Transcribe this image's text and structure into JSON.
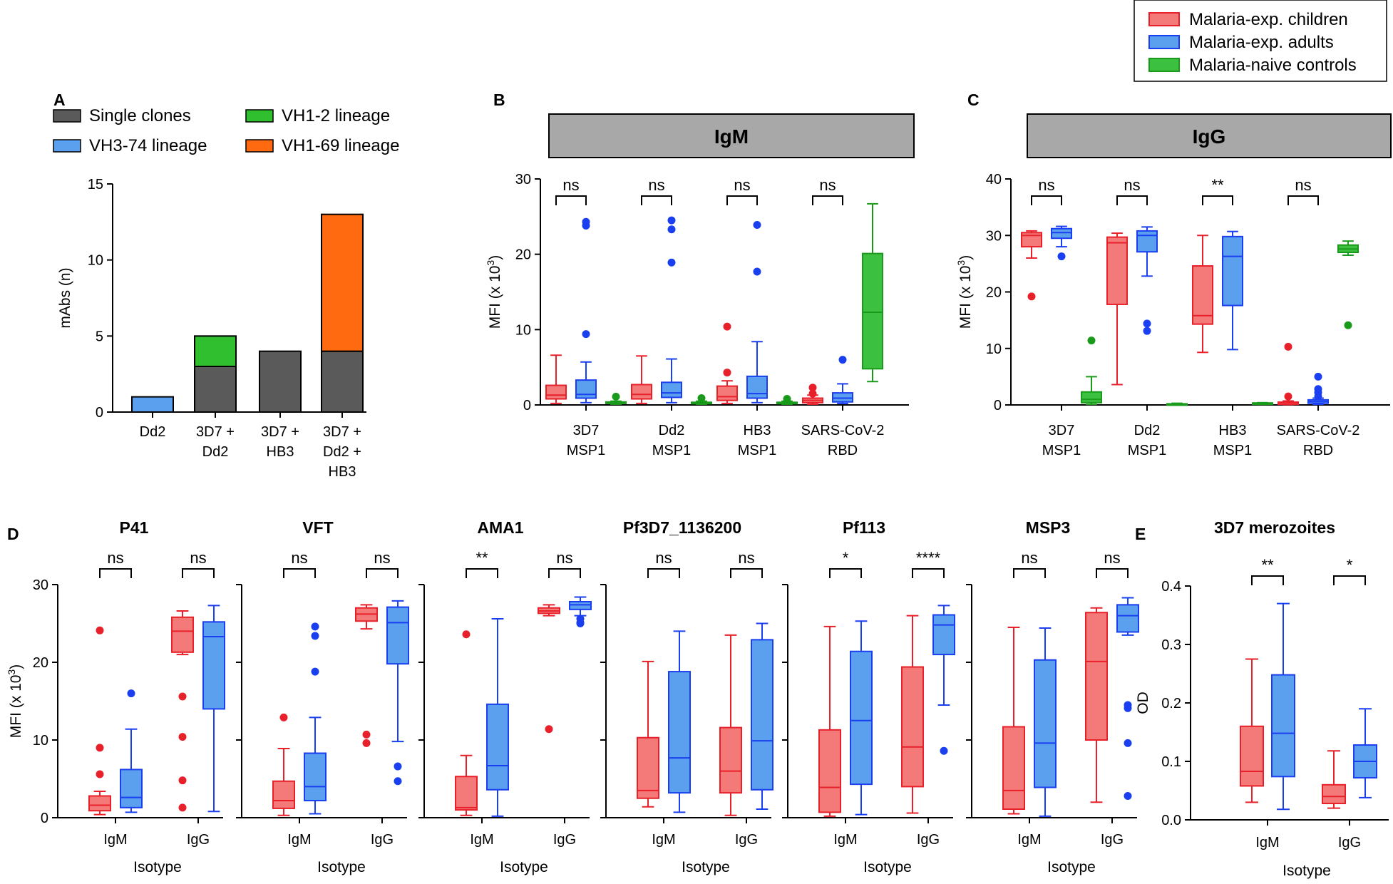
{
  "colors": {
    "children_fill": "#f47a7a",
    "children_line": "#e8202a",
    "adults_fill": "#5aa0ee",
    "adults_line": "#1a3ff0",
    "naive_fill": "#3cc040",
    "naive_line": "#1a9a1a",
    "single_clones": "#5a5a5a",
    "vh3_74": "#5aa0ee",
    "vh1_2": "#2fbf2f",
    "vh1_69": "#ff6a10",
    "header_bg": "#a8a8a8"
  },
  "legend_top": {
    "items": [
      {
        "label": "Malaria-exp. children",
        "key": "children"
      },
      {
        "label": "Malaria-exp. adults",
        "key": "adults"
      },
      {
        "label": "Malaria-naive controls",
        "key": "naive"
      }
    ]
  },
  "chart_data": [
    {
      "panel": "A",
      "type": "bar",
      "stacked": true,
      "categories": [
        "Dd2",
        "3D7 +\nDd2",
        "3D7 +\nHB3",
        "3D7 +\nDd2 +\nHB3"
      ],
      "series": [
        {
          "name": "Single clones",
          "values": [
            0,
            3,
            4,
            4
          ]
        },
        {
          "name": "VH3-74 lineage",
          "values": [
            1,
            0,
            0,
            0
          ]
        },
        {
          "name": "VH1-2 lineage",
          "values": [
            0,
            2,
            0,
            0
          ]
        },
        {
          "name": "VH1-69 lineage",
          "values": [
            0,
            0,
            0,
            9
          ]
        }
      ],
      "ylabel": "mAbs (n)",
      "ylim": [
        0,
        15
      ],
      "yticks": [
        0,
        5,
        10,
        15
      ]
    },
    {
      "panel": "B",
      "type": "box",
      "header": "IgM",
      "groups": [
        "3D7\nMSP1",
        "Dd2\nMSP1",
        "HB3\nMSP1",
        "SARS-CoV-2\nRBD"
      ],
      "significance": [
        "ns",
        "ns",
        "ns",
        "ns"
      ],
      "ylabel": "MFI (x 10³)",
      "ylim": [
        0,
        30
      ],
      "yticks": [
        0,
        10,
        20,
        30
      ],
      "boxes": [
        [
          {
            "series": "children",
            "min": 0.2,
            "q1": 0.8,
            "median": 1.3,
            "q3": 2.6,
            "max": 6.6,
            "outliers": []
          },
          {
            "series": "adults",
            "min": 0.3,
            "q1": 0.9,
            "median": 1.4,
            "q3": 3.3,
            "max": 5.7,
            "outliers": [
              9.4,
              23.8,
              24.3
            ]
          },
          {
            "series": "naive",
            "min": 0.1,
            "q1": 0.2,
            "median": 0.3,
            "q3": 0.4,
            "max": 0.5,
            "outliers": [
              1.1
            ]
          }
        ],
        [
          {
            "series": "children",
            "min": 0.2,
            "q1": 0.8,
            "median": 1.4,
            "q3": 2.7,
            "max": 6.5,
            "outliers": []
          },
          {
            "series": "adults",
            "min": 0.3,
            "q1": 1.0,
            "median": 1.6,
            "q3": 3.0,
            "max": 6.1,
            "outliers": [
              18.9,
              23.3,
              24.5
            ]
          },
          {
            "series": "naive",
            "min": 0.1,
            "q1": 0.2,
            "median": 0.25,
            "q3": 0.35,
            "max": 0.5,
            "outliers": [
              0.9
            ]
          }
        ],
        [
          {
            "series": "children",
            "min": 0.2,
            "q1": 0.6,
            "median": 1.1,
            "q3": 2.5,
            "max": 3.2,
            "outliers": [
              4.3,
              10.4
            ]
          },
          {
            "series": "adults",
            "min": 0.3,
            "q1": 0.9,
            "median": 1.5,
            "q3": 3.8,
            "max": 8.4,
            "outliers": [
              17.7,
              23.9
            ]
          },
          {
            "series": "naive",
            "min": 0.1,
            "q1": 0.2,
            "median": 0.25,
            "q3": 0.35,
            "max": 0.5,
            "outliers": [
              0.8
            ]
          }
        ],
        [
          {
            "series": "children",
            "min": 0.1,
            "q1": 0.3,
            "median": 0.6,
            "q3": 0.9,
            "max": 1.3,
            "outliers": [
              1.5,
              2.3
            ]
          },
          {
            "series": "adults",
            "min": 0.2,
            "q1": 0.4,
            "median": 0.9,
            "q3": 1.6,
            "max": 2.8,
            "outliers": [
              6.0
            ]
          },
          {
            "series": "naive",
            "min": 3.1,
            "q1": 4.8,
            "median": 12.3,
            "q3": 20.1,
            "max": 26.7,
            "outliers": []
          }
        ]
      ]
    },
    {
      "panel": "C",
      "type": "box",
      "header": "IgG",
      "groups": [
        "3D7\nMSP1",
        "Dd2\nMSP1",
        "HB3\nMSP1",
        "SARS-CoV-2\nRBD"
      ],
      "significance": [
        "ns",
        "ns",
        "**",
        "ns"
      ],
      "ylabel": "MFI (x 10³)",
      "ylim": [
        0,
        40
      ],
      "yticks": [
        0,
        10,
        20,
        30,
        40
      ],
      "boxes": [
        [
          {
            "series": "children",
            "min": 26.0,
            "q1": 28.0,
            "median": 30.0,
            "q3": 30.5,
            "max": 30.8,
            "outliers": [
              19.2
            ]
          },
          {
            "series": "adults",
            "min": 28.0,
            "q1": 29.5,
            "median": 30.5,
            "q3": 31.2,
            "max": 31.6,
            "outliers": [
              26.3
            ]
          },
          {
            "series": "naive",
            "min": 0.1,
            "q1": 0.4,
            "median": 1.0,
            "q3": 2.3,
            "max": 5.0,
            "outliers": [
              11.4
            ]
          }
        ],
        [
          {
            "series": "children",
            "min": 3.6,
            "q1": 17.8,
            "median": 28.7,
            "q3": 29.7,
            "max": 30.4,
            "outliers": []
          },
          {
            "series": "adults",
            "min": 22.8,
            "q1": 27.1,
            "median": 30.0,
            "q3": 30.8,
            "max": 31.5,
            "outliers": [
              13.1,
              14.4
            ]
          },
          {
            "series": "naive",
            "min": 0.05,
            "q1": 0.1,
            "median": 0.15,
            "q3": 0.2,
            "max": 0.3,
            "outliers": []
          }
        ],
        [
          {
            "series": "children",
            "min": 9.3,
            "q1": 14.3,
            "median": 15.8,
            "q3": 24.6,
            "max": 30.0,
            "outliers": []
          },
          {
            "series": "adults",
            "min": 9.8,
            "q1": 17.6,
            "median": 26.3,
            "q3": 29.8,
            "max": 30.7,
            "outliers": []
          },
          {
            "series": "naive",
            "min": 0.1,
            "q1": 0.2,
            "median": 0.25,
            "q3": 0.35,
            "max": 0.4,
            "outliers": []
          }
        ],
        [
          {
            "series": "children",
            "min": 0.05,
            "q1": 0.1,
            "median": 0.2,
            "q3": 0.5,
            "max": 0.7,
            "outliers": [
              1.5,
              10.3
            ]
          },
          {
            "series": "adults",
            "min": 0.1,
            "q1": 0.3,
            "median": 0.6,
            "q3": 0.9,
            "max": 1.2,
            "outliers": [
              1.5,
              2.2,
              2.8,
              5.0
            ]
          },
          {
            "series": "naive",
            "min": 26.5,
            "q1": 27.0,
            "median": 27.6,
            "q3": 28.3,
            "max": 29.0,
            "outliers": [
              14.1
            ]
          }
        ]
      ]
    },
    {
      "panel": "D",
      "type": "box",
      "shared_ylabel": "MFI (x 10³)",
      "ylim": [
        0,
        30
      ],
      "yticks": [
        0,
        10,
        20,
        30
      ],
      "xlabel": "Isotype",
      "isotypes": [
        "IgM",
        "IgG"
      ],
      "subpanels": [
        {
          "title": "P41",
          "significance": [
            "ns",
            "ns"
          ],
          "boxes": [
            [
              {
                "series": "children",
                "min": 0.4,
                "q1": 0.9,
                "median": 1.6,
                "q3": 2.8,
                "max": 3.4,
                "outliers": [
                  5.6,
                  9.0,
                  24.1
                ]
              },
              {
                "series": "adults",
                "min": 0.7,
                "q1": 1.3,
                "median": 2.6,
                "q3": 6.2,
                "max": 11.4,
                "outliers": [
                  16.0
                ]
              }
            ],
            [
              {
                "series": "children",
                "min": 21.0,
                "q1": 21.3,
                "median": 24.0,
                "q3": 25.8,
                "max": 26.6,
                "outliers": [
                  1.3,
                  4.8,
                  10.4,
                  15.6
                ]
              },
              {
                "series": "adults",
                "min": 0.8,
                "q1": 14.0,
                "median": 23.3,
                "q3": 25.2,
                "max": 27.3,
                "outliers": []
              }
            ]
          ]
        },
        {
          "title": "VFT",
          "significance": [
            "ns",
            "ns"
          ],
          "boxes": [
            [
              {
                "series": "children",
                "min": 0.3,
                "q1": 1.2,
                "median": 2.2,
                "q3": 4.7,
                "max": 8.9,
                "outliers": [
                  12.9
                ]
              },
              {
                "series": "adults",
                "min": 0.5,
                "q1": 2.2,
                "median": 4.0,
                "q3": 8.3,
                "max": 12.9,
                "outliers": [
                  18.8,
                  23.4,
                  24.6
                ]
              }
            ],
            [
              {
                "series": "children",
                "min": 24.3,
                "q1": 25.3,
                "median": 26.2,
                "q3": 27.0,
                "max": 27.4,
                "outliers": [
                  9.6,
                  10.7
                ]
              },
              {
                "series": "adults",
                "min": 9.8,
                "q1": 19.8,
                "median": 25.1,
                "q3": 27.1,
                "max": 27.9,
                "outliers": [
                  4.7,
                  6.6
                ]
              }
            ]
          ]
        },
        {
          "title": "AMA1",
          "significance": [
            "**",
            "ns"
          ],
          "boxes": [
            [
              {
                "series": "children",
                "min": 0.3,
                "q1": 1.0,
                "median": 1.3,
                "q3": 5.3,
                "max": 8.0,
                "outliers": [
                  23.6
                ]
              },
              {
                "series": "adults",
                "min": 0.2,
                "q1": 3.6,
                "median": 6.7,
                "q3": 14.6,
                "max": 25.6,
                "outliers": []
              }
            ],
            [
              {
                "series": "children",
                "min": 26.0,
                "q1": 26.3,
                "median": 26.6,
                "q3": 27.0,
                "max": 27.4,
                "outliers": [
                  11.4
                ]
              },
              {
                "series": "adults",
                "min": 26.0,
                "q1": 26.8,
                "median": 27.4,
                "q3": 27.8,
                "max": 28.4,
                "outliers": [
                  25.0,
                  25.1,
                  25.6
                ]
              }
            ]
          ]
        },
        {
          "title": "Pf3D7_1136200",
          "significance": [
            "ns",
            "ns"
          ],
          "boxes": [
            [
              {
                "series": "children",
                "min": 1.4,
                "q1": 2.5,
                "median": 3.5,
                "q3": 10.3,
                "max": 20.1,
                "outliers": []
              },
              {
                "series": "adults",
                "min": 0.7,
                "q1": 3.2,
                "median": 7.7,
                "q3": 18.8,
                "max": 24.0,
                "outliers": []
              }
            ],
            [
              {
                "series": "children",
                "min": 0.3,
                "q1": 3.2,
                "median": 6.0,
                "q3": 11.6,
                "max": 23.5,
                "outliers": []
              },
              {
                "series": "adults",
                "min": 1.1,
                "q1": 3.6,
                "median": 9.9,
                "q3": 22.9,
                "max": 25.0,
                "outliers": []
              }
            ]
          ]
        },
        {
          "title": "Pf113",
          "significance": [
            "*",
            "****"
          ],
          "boxes": [
            [
              {
                "series": "children",
                "min": 0.2,
                "q1": 0.7,
                "median": 3.9,
                "q3": 11.3,
                "max": 24.6,
                "outliers": []
              },
              {
                "series": "adults",
                "min": 0.4,
                "q1": 4.3,
                "median": 12.5,
                "q3": 21.4,
                "max": 25.3,
                "outliers": []
              }
            ],
            [
              {
                "series": "children",
                "min": 0.6,
                "q1": 4.0,
                "median": 9.1,
                "q3": 19.4,
                "max": 26.0,
                "outliers": []
              },
              {
                "series": "adults",
                "min": 14.5,
                "q1": 21.0,
                "median": 24.8,
                "q3": 26.1,
                "max": 27.3,
                "outliers": [
                  8.6
                ]
              }
            ]
          ]
        },
        {
          "title": "MSP3",
          "significance": [
            "ns",
            "ns"
          ],
          "boxes": [
            [
              {
                "series": "children",
                "min": 0.5,
                "q1": 1.1,
                "median": 3.5,
                "q3": 11.7,
                "max": 24.5,
                "outliers": []
              },
              {
                "series": "adults",
                "min": 0.2,
                "q1": 3.9,
                "median": 9.6,
                "q3": 20.3,
                "max": 24.4,
                "outliers": []
              }
            ],
            [
              {
                "series": "children",
                "min": 2.0,
                "q1": 10.0,
                "median": 20.1,
                "q3": 26.4,
                "max": 27.0,
                "outliers": []
              },
              {
                "series": "adults",
                "min": 23.5,
                "q1": 23.9,
                "median": 26.0,
                "q3": 27.4,
                "max": 28.3,
                "outliers": [
                  2.8,
                  9.6,
                  14.1,
                  14.5
                ]
              }
            ]
          ]
        }
      ]
    },
    {
      "panel": "E",
      "type": "box",
      "title": "3D7 merozoites",
      "ylabel": "OD",
      "xlabel": "Isotype",
      "ylim": [
        0,
        0.4
      ],
      "yticks": [
        0.0,
        0.1,
        0.2,
        0.3,
        0.4
      ],
      "ytick_labels": [
        "0.0",
        "0.1",
        "0.2",
        "0.3",
        "0.4"
      ],
      "groups": [
        "IgM",
        "IgG"
      ],
      "significance": [
        "**",
        "*"
      ],
      "boxes": [
        [
          {
            "series": "children",
            "min": 0.03,
            "q1": 0.058,
            "median": 0.083,
            "q3": 0.16,
            "max": 0.275,
            "outliers": []
          },
          {
            "series": "adults",
            "min": 0.018,
            "q1": 0.074,
            "median": 0.148,
            "q3": 0.248,
            "max": 0.37,
            "outliers": []
          }
        ],
        [
          {
            "series": "children",
            "min": 0.02,
            "q1": 0.028,
            "median": 0.04,
            "q3": 0.06,
            "max": 0.118,
            "outliers": []
          },
          {
            "series": "adults",
            "min": 0.038,
            "q1": 0.072,
            "median": 0.1,
            "q3": 0.128,
            "max": 0.19,
            "outliers": []
          }
        ]
      ]
    }
  ],
  "text": {
    "panel_a_legend": [
      "Single clones",
      "VH3-74 lineage",
      "VH1-2 lineage",
      "VH1-69 lineage"
    ]
  }
}
